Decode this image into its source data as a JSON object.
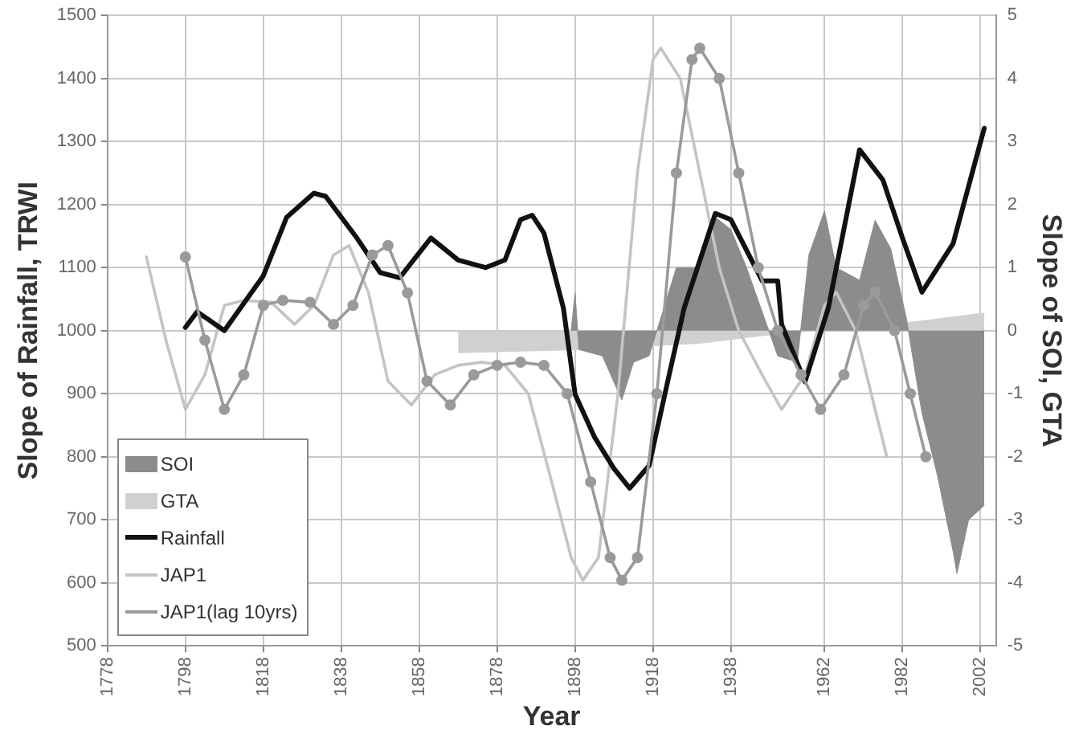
{
  "chart_data": {
    "type": "line",
    "xlabel": "Year",
    "ylabel": "Slope of Rainfall, TRWI",
    "y2label": "Slope of SOI, GTA",
    "xlim": [
      1778,
      2006
    ],
    "xticks": [
      1778,
      1798,
      1818,
      1838,
      1858,
      1878,
      1898,
      1918,
      1938,
      1962,
      1982,
      2002
    ],
    "ylim": [
      500,
      1500
    ],
    "yticks": [
      500,
      600,
      700,
      800,
      900,
      1000,
      1100,
      1200,
      1300,
      1400,
      1500
    ],
    "y2lim": [
      -5,
      5
    ],
    "y2ticks": [
      -5,
      -4,
      -3,
      -2,
      -1,
      0,
      1,
      2,
      3,
      4,
      5
    ],
    "grid": true,
    "legend": "bottom left",
    "marker": "none",
    "line_style": "solid",
    "series": [
      {
        "name": "SOI",
        "type": "area",
        "axis": "y2",
        "color": "#8c8c8c",
        "x": [
          1897,
          1898,
          1899,
          1905,
          1910,
          1913,
          1917,
          1920,
          1924,
          1930,
          1934,
          1938,
          1942,
          1946,
          1950,
          1955,
          1958,
          1962,
          1965,
          1968,
          1971,
          1975,
          1979,
          1983,
          1987,
          1991,
          1995,
          1996,
          1999,
          2003
        ],
        "values": [
          0,
          0.6,
          -0.3,
          -0.4,
          -1.1,
          -0.5,
          -0.4,
          0.2,
          1.0,
          1.0,
          1.8,
          1.6,
          1.0,
          0.3,
          -0.4,
          -0.5,
          1.2,
          1.9,
          1.0,
          0.9,
          0.8,
          1.75,
          1.3,
          0.2,
          -1.3,
          -2.3,
          -3.5,
          -3.85,
          -3.0,
          -2.77
        ]
      },
      {
        "name": "GTA",
        "type": "area",
        "axis": "y2",
        "color": "#d0d0d0",
        "x": [
          1868,
          1900,
          1930,
          1950,
          1960,
          1980,
          2003
        ],
        "values": [
          -0.35,
          -0.3,
          -0.2,
          -0.05,
          0.0,
          0.1,
          0.28
        ]
      },
      {
        "name": "Rainfall",
        "color": "#111111",
        "x": [
          1798,
          1801,
          1808,
          1818,
          1824,
          1831,
          1834,
          1842,
          1848,
          1853,
          1861,
          1868,
          1875,
          1880,
          1884,
          1887,
          1890,
          1895,
          1898,
          1903,
          1908,
          1912,
          1917,
          1922,
          1926,
          1934,
          1938,
          1946,
          1950,
          1951,
          1957,
          1963,
          1971,
          1977,
          1982,
          1987,
          1995,
          2003
        ],
        "values": [
          1005,
          1030,
          1000,
          1087,
          1180,
          1218,
          1213,
          1147,
          1092,
          1084,
          1147,
          1112,
          1100,
          1112,
          1176,
          1183,
          1155,
          1036,
          899,
          831,
          781,
          750,
          786,
          926,
          1036,
          1186,
          1176,
          1079,
          1079,
          1010,
          919,
          1036,
          1287,
          1239,
          1147,
          1061,
          1138,
          1321
        ]
      },
      {
        "name": "JAP1",
        "color": "#c4c4c4",
        "x": [
          1788,
          1793,
          1798,
          1803,
          1808,
          1813,
          1820,
          1826,
          1831,
          1836,
          1840,
          1845,
          1850,
          1856,
          1862,
          1868,
          1874,
          1880,
          1886,
          1892,
          1897,
          1900,
          1904,
          1909,
          1914,
          1918,
          1920,
          1925,
          1930,
          1935,
          1940,
          1946,
          1951,
          1957,
          1962,
          1965,
          1970,
          1974,
          1978
        ],
        "values": [
          1117,
          985,
          875,
          930,
          1040,
          1048,
          1045,
          1010,
          1040,
          1120,
          1135,
          1060,
          920,
          882,
          930,
          945,
          950,
          945,
          900,
          760,
          640,
          604,
          640,
          900,
          1250,
          1430,
          1448,
          1400,
          1250,
          1100,
          1000,
          930,
          875,
          930,
          1040,
          1061,
          1000,
          900,
          800
        ]
      },
      {
        "name": "JAP1(lag 10yrs)",
        "color": "#9a9a9a",
        "marker": "circle",
        "x": [
          1798,
          1803,
          1808,
          1813,
          1818,
          1823,
          1830,
          1836,
          1841,
          1846,
          1850,
          1855,
          1860,
          1866,
          1872,
          1878,
          1884,
          1890,
          1896,
          1902,
          1907,
          1910,
          1914,
          1919,
          1924,
          1928,
          1930,
          1935,
          1940,
          1945,
          1950,
          1956,
          1961,
          1967,
          1972,
          1975,
          1980,
          1984,
          1988
        ],
        "values": [
          1117,
          985,
          875,
          930,
          1040,
          1048,
          1045,
          1010,
          1040,
          1120,
          1135,
          1060,
          920,
          882,
          930,
          945,
          950,
          945,
          900,
          760,
          640,
          604,
          640,
          900,
          1250,
          1430,
          1448,
          1400,
          1250,
          1100,
          1000,
          930,
          875,
          930,
          1040,
          1061,
          1000,
          900,
          800
        ]
      }
    ]
  }
}
